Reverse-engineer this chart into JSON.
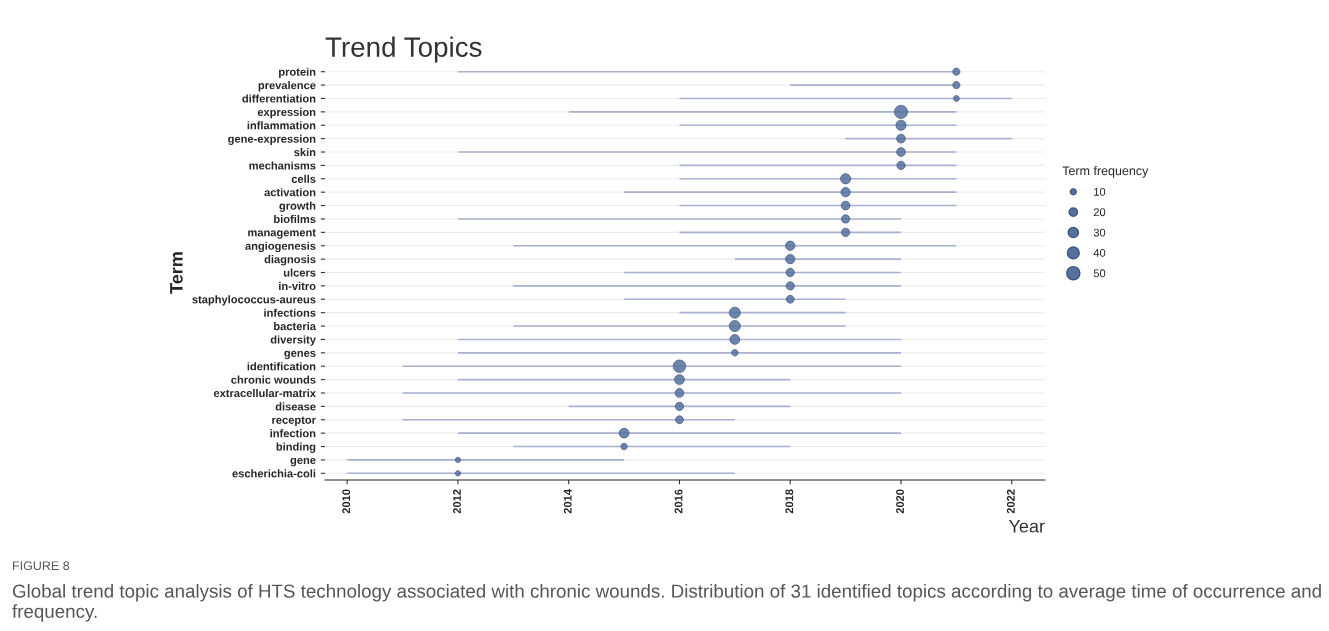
{
  "chart_data": {
    "type": "bar",
    "orientation": "horizontal",
    "title": "Trend Topics",
    "xlabel": "Year",
    "ylabel": "Term",
    "legend_title": "Term frequency",
    "categories": [
      "protein",
      "prevalence",
      "differentiation",
      "expression",
      "inflammation",
      "gene-expression",
      "skin",
      "mechanisms",
      "cells",
      "activation",
      "growth",
      "biofilms",
      "management",
      "angiogenesis",
      "diagnosis",
      "ulcers",
      "in-vitro",
      "staphylococcus-aureus",
      "infections",
      "bacteria",
      "diversity",
      "genes",
      "identification",
      "chronic wounds",
      "extracellular-matrix",
      "disease",
      "receptor",
      "infection",
      "binding",
      "gene",
      "escherichia-coli"
    ],
    "series": [
      {
        "color": "#a9b1d0",
        "base": [
          2012,
          2018,
          2016,
          2014,
          2016,
          2019,
          2012,
          2016,
          2016,
          2015,
          2016,
          2012,
          2016,
          2013,
          2017,
          2015,
          2013,
          2015,
          2016,
          2013,
          2012,
          2012,
          2011,
          2012,
          2011,
          2014,
          2011,
          2012,
          2013,
          2010,
          2010
        ],
        "values": [
          9,
          3,
          6,
          7,
          5,
          3,
          9,
          5,
          5,
          6,
          5,
          8,
          4,
          8,
          3,
          5,
          7,
          4,
          3,
          6,
          8,
          8,
          9,
          6,
          9,
          4,
          6,
          8,
          5,
          5,
          7
        ]
      },
      {
        "type": "bubble",
        "color": "#56719e",
        "values": [
          2021,
          2021,
          2021,
          2020,
          2020,
          2020,
          2020,
          2020,
          2019,
          2019,
          2019,
          2019,
          2019,
          2018,
          2018,
          2018,
          2018,
          2018,
          2017,
          2017,
          2017,
          2017,
          2016,
          2016,
          2016,
          2016,
          2016,
          2015,
          2015,
          2012,
          2012
        ],
        "sizes": [
          15,
          15,
          10,
          50,
          30,
          22,
          22,
          20,
          30,
          25,
          22,
          20,
          20,
          25,
          25,
          20,
          20,
          18,
          35,
          35,
          28,
          12,
          45,
          28,
          22,
          20,
          18,
          28,
          12,
          8,
          8
        ]
      }
    ],
    "size_legend": [
      10,
      20,
      30,
      40,
      50
    ],
    "xlim": [
      2009.6,
      2022.6
    ],
    "xticks": [
      2010,
      2012,
      2014,
      2016,
      2018,
      2020,
      2022
    ],
    "grid": "y",
    "annotations": [
      "FIGURE 8",
      "Global trend topic analysis of HTS technology associated with chronic wounds. Distribution of 31 identified topics according to average time of occurrence and frequency."
    ]
  }
}
